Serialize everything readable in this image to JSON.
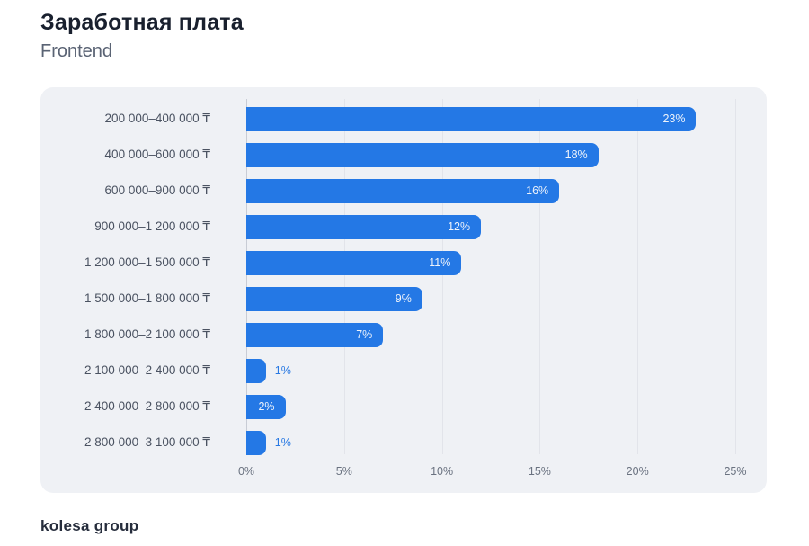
{
  "page": {
    "title": "Заработная плата",
    "subtitle": "Frontend",
    "footer_logo": "kolesa group"
  },
  "chart_data": {
    "type": "bar",
    "orientation": "horizontal",
    "title": "Заработная плата",
    "subtitle": "Frontend",
    "categories": [
      "200 000–400 000 ₸",
      "400 000–600 000 ₸",
      "600 000–900 000 ₸",
      "900 000–1 200 000 ₸",
      "1 200 000–1 500 000 ₸",
      "1 500 000–1 800 000 ₸",
      "1 800 000–2 100 000 ₸",
      "2 100 000–2 400 000 ₸",
      "2 400 000–2 800 000 ₸",
      "2 800 000–3 100 000 ₸"
    ],
    "values": [
      23,
      18,
      16,
      12,
      11,
      9,
      7,
      1,
      2,
      1
    ],
    "value_labels": [
      "23%",
      "18%",
      "16%",
      "12%",
      "11%",
      "9%",
      "7%",
      "1%",
      "2%",
      "1%"
    ],
    "xlabel": "",
    "ylabel": "",
    "x_ticks": [
      "0%",
      "5%",
      "10%",
      "15%",
      "20%",
      "25%"
    ],
    "xlim": [
      0,
      25
    ],
    "grid": true,
    "legend": "none",
    "bar_color": "#2478e5",
    "panel_bg": "#eff1f5",
    "inside_label_color": "#eef3fb",
    "outside_label_color": "#2979e3"
  }
}
